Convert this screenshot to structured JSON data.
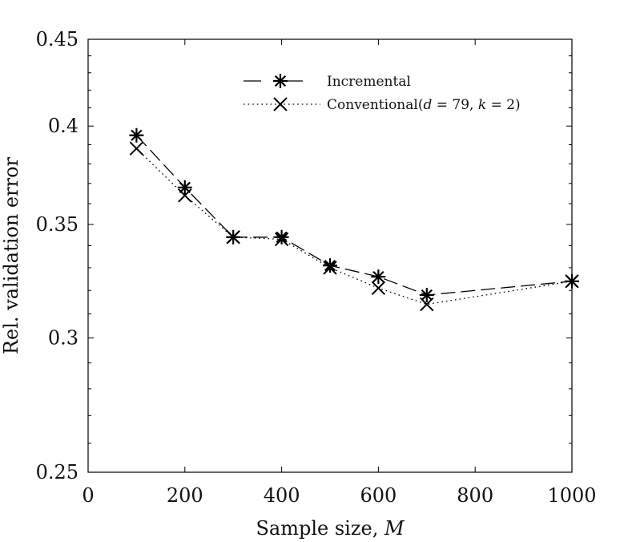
{
  "chart_data": {
    "type": "line",
    "title": "",
    "xlabel": "Sample size, M",
    "ylabel": "Rel. validation error",
    "xlim": [
      0,
      1000
    ],
    "ylim": [
      0.25,
      0.45
    ],
    "yscale": "log",
    "grid": false,
    "legend_position": "top-right",
    "x_ticks": [
      0,
      200,
      400,
      600,
      800,
      1000
    ],
    "x_tick_labels": [
      "0",
      "200",
      "400",
      "600",
      "800",
      "1000"
    ],
    "y_ticks": [
      0.25,
      0.3,
      0.35,
      0.4,
      0.45
    ],
    "y_tick_labels": [
      "0.25",
      "0.3",
      "0.35",
      "0.4",
      "0.45"
    ],
    "series": [
      {
        "name": "Incremental",
        "line_style": "dashed",
        "marker": "asterisk",
        "x": [
          100,
          200,
          300,
          400,
          500,
          600,
          700,
          1000
        ],
        "values": [
          0.395,
          0.368,
          0.344,
          0.344,
          0.331,
          0.326,
          0.318,
          0.324
        ]
      },
      {
        "name": "Conventional(d = 79, k = 2)",
        "line_style": "dotted",
        "marker": "x",
        "x": [
          100,
          200,
          300,
          400,
          500,
          600,
          700,
          1000
        ],
        "values": [
          0.388,
          0.364,
          0.344,
          0.343,
          0.33,
          0.321,
          0.314,
          0.324
        ]
      }
    ]
  },
  "legend": {
    "incremental_label": "Incremental",
    "conventional_prefix": "Conventional(",
    "d_symbol": "d",
    "d_eq": " = 79, ",
    "k_symbol": "k",
    "k_eq": " = 2)"
  },
  "axes": {
    "xlabel_prefix": "Sample size, ",
    "xlabel_symbol": "M",
    "ylabel": "Rel. validation error"
  },
  "colors": {
    "line": "#000000",
    "background": "#ffffff"
  }
}
